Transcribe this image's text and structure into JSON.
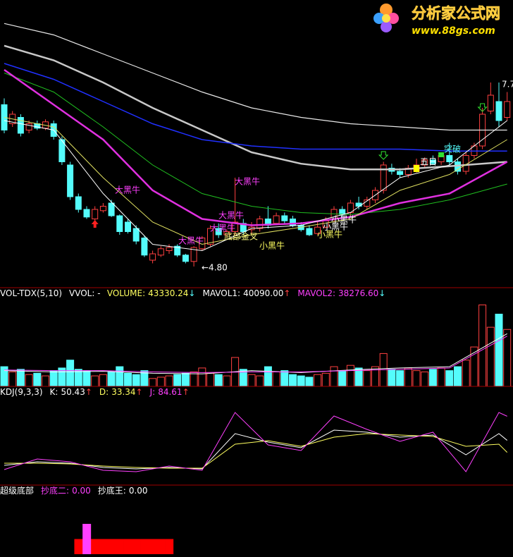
{
  "logo": {
    "title": "分析家公式网",
    "url": "www.88gs.com"
  },
  "chart_data": [
    {
      "type": "candlestick",
      "ylim": [
        4.5,
        9.0
      ],
      "open": [
        7.35,
        7.05,
        7.15,
        6.95,
        7.05,
        6.98,
        7.05,
        6.8,
        6.4,
        5.9,
        5.7,
        5.55,
        5.68,
        5.8,
        5.6,
        5.5,
        5.4,
        5.25,
        4.9,
        4.98,
        5.05,
        5.12,
        4.98,
        4.88,
        5.08,
        5.15,
        5.4,
        5.3,
        5.35,
        5.48,
        5.38,
        5.4,
        5.55,
        5.48,
        5.6,
        5.55,
        5.45,
        5.4,
        5.32,
        5.42,
        5.55,
        5.7,
        5.65,
        5.8,
        5.75,
        5.85,
        6.0,
        6.35,
        6.3,
        6.25,
        6.3,
        6.4,
        6.48,
        6.45,
        6.55,
        6.45,
        6.3,
        6.55,
        6.7,
        7.25,
        7.4,
        7.15
      ],
      "high": [
        7.45,
        7.25,
        7.2,
        7.1,
        7.1,
        7.12,
        7.1,
        6.85,
        6.45,
        5.95,
        5.75,
        5.75,
        5.8,
        5.85,
        5.62,
        5.55,
        5.45,
        5.28,
        5.05,
        5.12,
        5.15,
        5.15,
        5.0,
        5.12,
        5.28,
        5.45,
        5.48,
        5.38,
        6.2,
        5.55,
        5.5,
        5.6,
        5.75,
        5.65,
        5.65,
        5.6,
        5.5,
        5.45,
        5.5,
        5.58,
        5.75,
        5.75,
        5.85,
        5.9,
        5.9,
        6.05,
        6.45,
        6.42,
        6.35,
        6.4,
        6.5,
        6.52,
        6.55,
        6.6,
        6.75,
        6.5,
        6.6,
        6.75,
        7.3,
        7.7,
        7.7,
        7.55
      ],
      "low": [
        6.9,
        7.0,
        6.85,
        6.9,
        6.95,
        6.95,
        6.8,
        6.4,
        5.85,
        5.65,
        5.55,
        5.5,
        5.65,
        5.58,
        5.3,
        5.32,
        5.15,
        4.95,
        4.85,
        4.95,
        5.0,
        4.95,
        4.85,
        4.8,
        5.05,
        5.12,
        5.25,
        5.25,
        5.3,
        5.3,
        5.3,
        5.35,
        5.4,
        5.45,
        5.48,
        5.42,
        5.35,
        5.28,
        5.3,
        5.4,
        5.5,
        5.55,
        5.6,
        5.7,
        5.7,
        5.8,
        5.95,
        6.25,
        6.2,
        6.2,
        6.28,
        6.35,
        6.4,
        6.4,
        6.4,
        6.25,
        6.25,
        6.5,
        6.65,
        7.2,
        7.0,
        7.1
      ],
      "close": [
        6.95,
        7.2,
        6.9,
        7.05,
        6.98,
        7.08,
        6.85,
        6.45,
        5.9,
        5.7,
        5.58,
        5.7,
        5.75,
        5.6,
        5.35,
        5.35,
        5.2,
        4.98,
        5.0,
        5.08,
        5.1,
        4.98,
        4.88,
        5.1,
        5.25,
        5.4,
        5.3,
        5.35,
        5.5,
        5.35,
        5.42,
        5.55,
        5.45,
        5.6,
        5.52,
        5.45,
        5.38,
        5.3,
        5.42,
        5.52,
        5.7,
        5.62,
        5.8,
        5.75,
        5.85,
        6.0,
        6.4,
        6.3,
        6.25,
        6.35,
        6.4,
        6.48,
        6.42,
        6.55,
        6.45,
        6.3,
        6.55,
        6.7,
        7.2,
        7.5,
        7.1,
        7.4
      ],
      "up_color": "#ff4040",
      "down_color": "#54fcfc",
      "series": [
        {
          "color": "#e8e8e8",
          "width": 1.2,
          "x": [
            0,
            6,
            12,
            18,
            24,
            30,
            36,
            42,
            48,
            54,
            61
          ],
          "values": [
            8.63,
            8.45,
            8.15,
            7.85,
            7.55,
            7.3,
            7.15,
            7.05,
            7.0,
            6.95,
            6.95
          ]
        },
        {
          "color": "#c8c8c8",
          "width": 2.5,
          "x": [
            0,
            6,
            12,
            18,
            24,
            30,
            36,
            42,
            48,
            54,
            61
          ],
          "values": [
            8.28,
            8.05,
            7.7,
            7.3,
            6.95,
            6.6,
            6.42,
            6.33,
            6.33,
            6.38,
            6.45
          ]
        },
        {
          "color": "#2030ff",
          "width": 1.5,
          "x": [
            0,
            6,
            12,
            18,
            24,
            30,
            36,
            42,
            48,
            54,
            61
          ],
          "values": [
            8.0,
            7.75,
            7.4,
            7.05,
            6.8,
            6.7,
            6.65,
            6.65,
            6.65,
            6.62,
            6.62
          ]
        },
        {
          "color": "#20c020",
          "width": 1,
          "x": [
            0,
            6,
            12,
            18,
            24,
            30,
            36,
            42,
            48,
            54,
            61
          ],
          "values": [
            7.85,
            7.55,
            7.0,
            6.4,
            5.95,
            5.75,
            5.65,
            5.62,
            5.7,
            5.85,
            6.1
          ]
        },
        {
          "color": "#e030e0",
          "width": 2.5,
          "x": [
            0,
            6,
            12,
            18,
            24,
            30,
            36,
            42,
            48,
            54,
            61
          ],
          "values": [
            7.9,
            7.35,
            6.8,
            6.0,
            5.55,
            5.45,
            5.48,
            5.58,
            5.8,
            5.95,
            6.45
          ]
        },
        {
          "color": "#e0e060",
          "width": 1,
          "x": [
            0,
            6,
            12,
            18,
            24,
            30,
            36,
            42,
            48,
            54,
            61
          ],
          "values": [
            7.15,
            7.0,
            6.2,
            5.5,
            5.15,
            5.3,
            5.42,
            5.55,
            6.0,
            6.25,
            6.8
          ]
        },
        {
          "color": "#ffffff",
          "width": 1,
          "x": [
            0,
            6,
            12,
            18,
            24,
            30,
            36,
            42,
            48,
            54,
            61
          ],
          "values": [
            7.1,
            6.95,
            5.95,
            5.15,
            5.05,
            5.4,
            5.45,
            5.65,
            6.2,
            6.4,
            7.1
          ]
        }
      ],
      "annotations": [
        {
          "text": "大黑牛",
          "color": "#ff40ff"
        },
        {
          "text": "大黑牛",
          "color": "#ff40ff"
        },
        {
          "text": "大黑牛",
          "color": "#ff40ff"
        },
        {
          "text": "大黑牛",
          "color": "#ff40ff"
        },
        {
          "text": "大黑牛",
          "color": "#ff40ff"
        },
        {
          "text": "底部金叉",
          "color": "#ffff80"
        },
        {
          "text": "小黑牛",
          "color": "#ffff60"
        },
        {
          "text": "小黑牛",
          "color": "#ffff60"
        },
        {
          "text": "小黑牛",
          "color": "#ffffff"
        },
        {
          "text": "小黑牛",
          "color": "#ffffff"
        },
        {
          "text": "五日",
          "color": "#ffffff"
        },
        {
          "text": "突破",
          "color": "#54fcfc"
        },
        {
          "text": "←4.80",
          "color": "#ffffff"
        },
        {
          "text": "7.7",
          "color": "#ffffff"
        }
      ]
    },
    {
      "type": "volume",
      "title": "VOL-TDX(5,10)",
      "header": [
        {
          "label": "VVOL: -",
          "color": "#ffffff"
        },
        {
          "label": "VOLUME:",
          "value": 43330.24,
          "arrow": "↓",
          "color": "#ffff60",
          "arrow_color": "#54fcfc"
        },
        {
          "label": "MAVOL1:",
          "value": {
            "value": 40090,
            "label": "40090.00"
          },
          "arrow": "↑",
          "color": "#ffffff",
          "arrow_color": "#ff4040"
        },
        {
          "label": "MAVOL2:",
          "value": {
            "value": 38276.6,
            "label": "38276.60"
          },
          "arrow": "↓",
          "color": "#ff40ff",
          "arrow_color": "#54fcfc"
        }
      ],
      "ylim": [
        0,
        66000
      ],
      "values": [
        15000,
        11000,
        13000,
        9000,
        10000,
        8000,
        12000,
        14000,
        20000,
        13000,
        12000,
        8000,
        9000,
        11000,
        15000,
        10000,
        9000,
        12000,
        6000,
        7000,
        8000,
        9000,
        10000,
        11000,
        14000,
        10000,
        9000,
        8000,
        22000,
        13000,
        9000,
        8000,
        15000,
        11000,
        12000,
        9000,
        8000,
        7000,
        9000,
        10000,
        15000,
        12000,
        16000,
        14000,
        12000,
        15000,
        25000,
        13000,
        12000,
        14000,
        12000,
        11000,
        13000,
        14000,
        12000,
        15000,
        20000,
        30000,
        62000,
        45000,
        55000,
        43330.24
      ],
      "series": [
        {
          "color": "#ffffff",
          "x": [
            0,
            6,
            12,
            18,
            24,
            30,
            36,
            42,
            48,
            54,
            61
          ],
          "values": [
            12000,
            11000,
            11500,
            10000,
            9500,
            12000,
            10500,
            12500,
            14000,
            15000,
            40090
          ]
        },
        {
          "color": "#ff40ff",
          "x": [
            0,
            6,
            12,
            18,
            24,
            30,
            36,
            42,
            48,
            54,
            61
          ],
          "values": [
            12500,
            12000,
            12000,
            11000,
            10500,
            11000,
            11000,
            12000,
            13000,
            14000,
            38276.6
          ]
        }
      ]
    },
    {
      "type": "line",
      "title": "KDJ(9,3,3)",
      "header": [
        {
          "label": "K:",
          "value": 50.43,
          "arrow": "↑",
          "color": "#ffffff",
          "arrow_color": "#ff4040"
        },
        {
          "label": "D:",
          "value": 33.34,
          "arrow": "↑",
          "color": "#ffff60",
          "arrow_color": "#ff4040"
        },
        {
          "label": "J:",
          "value": 84.61,
          "arrow": "↑",
          "color": "#ff40ff",
          "arrow_color": "#ff4040"
        }
      ],
      "ylim": [
        -10,
        110
      ],
      "x": [
        0,
        4,
        8,
        12,
        16,
        20,
        24,
        28,
        32,
        36,
        40,
        44,
        48,
        52,
        56,
        60,
        61
      ],
      "series": [
        {
          "color": "#ffffff",
          "values": [
            15,
            20,
            18,
            12,
            10,
            12,
            10,
            60,
            48,
            40,
            65,
            62,
            55,
            58,
            30,
            60,
            50.43
          ]
        },
        {
          "color": "#ffff60",
          "values": [
            18,
            18,
            17,
            14,
            12,
            11,
            11,
            45,
            50,
            42,
            55,
            60,
            58,
            56,
            42,
            45,
            33.34
          ]
        },
        {
          "color": "#ff40ff",
          "values": [
            9,
            24,
            20,
            8,
            6,
            14,
            8,
            90,
            44,
            36,
            85,
            66,
            49,
            62,
            6,
            90,
            84.61
          ]
        }
      ]
    },
    {
      "type": "bar",
      "title": "超级底部",
      "header": [
        {
          "label": "抄底二:",
          "value": {
            "value": 0,
            "label": "0.00"
          },
          "color": "#ff40ff"
        },
        {
          "label": "抄底王:",
          "value": {
            "value": 0,
            "label": "0.00"
          },
          "color": "#ffffff"
        }
      ],
      "ylim": [
        0,
        4
      ],
      "bars": [
        {
          "color": "#ff0000",
          "values": [
            0,
            0,
            0,
            0,
            0,
            0,
            0,
            0,
            0,
            1,
            1,
            1,
            1,
            1,
            1,
            1,
            1,
            1,
            1,
            1,
            1,
            0,
            0,
            0,
            0,
            0,
            0,
            0,
            0,
            0,
            0,
            0,
            0,
            0,
            0,
            0,
            0,
            0,
            0,
            0,
            0,
            0,
            0,
            0,
            0,
            0,
            0,
            0,
            0,
            0,
            0,
            0,
            0,
            0,
            0,
            0,
            0,
            0,
            0,
            0,
            0,
            0
          ]
        },
        {
          "color": "#ff40ff",
          "values": [
            0,
            0,
            0,
            0,
            0,
            0,
            0,
            0,
            0,
            0,
            2,
            0,
            0,
            0,
            0,
            0,
            0,
            0,
            0,
            0,
            0,
            0,
            0,
            0,
            0,
            0,
            0,
            0,
            0,
            0,
            0,
            0,
            0,
            0,
            0,
            0,
            0,
            0,
            0,
            0,
            0,
            0,
            0,
            0,
            0,
            0,
            0,
            0,
            0,
            0,
            0,
            0,
            0,
            0,
            0,
            0,
            0,
            0,
            0,
            0,
            0,
            0
          ]
        }
      ]
    }
  ]
}
